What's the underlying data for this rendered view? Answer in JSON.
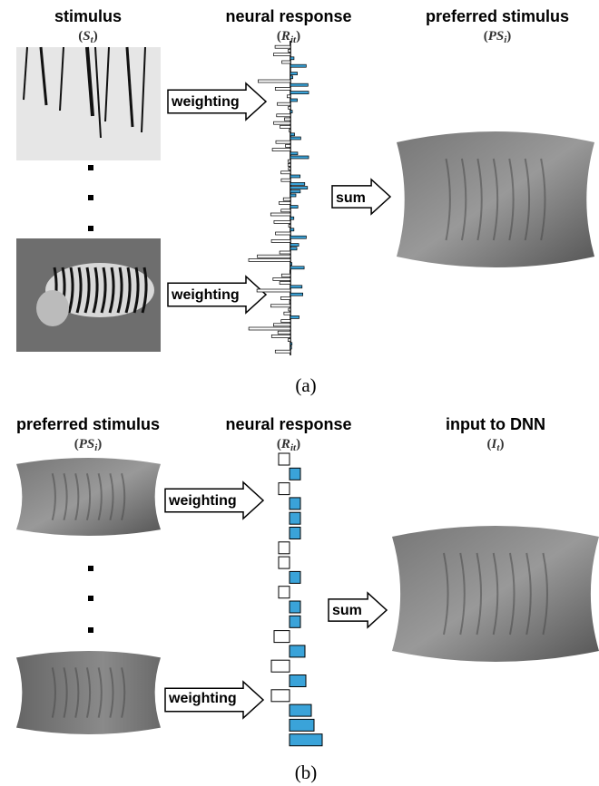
{
  "panel_a": {
    "stimulus": {
      "title": "stimulus",
      "notation": {
        "open": "(",
        "symbol": "S",
        "subscript": "t",
        "close": ")"
      }
    },
    "response": {
      "title": "neural response",
      "notation": {
        "open": "(",
        "symbol": "R",
        "subscript": "it",
        "close": ")"
      }
    },
    "output": {
      "title": "preferred stimulus",
      "notation": {
        "open": "(",
        "symbol": "PS",
        "subscript": "i",
        "close": ")"
      }
    },
    "weighting_labels": [
      "weighting",
      "weighting"
    ],
    "sum_label": "sum",
    "caption": "(a)"
  },
  "panel_b": {
    "stimulus": {
      "title": "preferred stimulus",
      "notation": {
        "open": "(",
        "symbol": "PS",
        "subscript": "i",
        "close": ")"
      }
    },
    "response": {
      "title": "neural response",
      "notation": {
        "open": "(",
        "symbol": "R",
        "subscript": "it",
        "close": ")"
      }
    },
    "output": {
      "title": "input to DNN",
      "notation": {
        "open": "(",
        "symbol": "I",
        "subscript": "t",
        "close": ")"
      }
    },
    "weighting_labels": [
      "weighting",
      "weighting"
    ],
    "sum_label": "sum",
    "caption": "(b)"
  }
}
